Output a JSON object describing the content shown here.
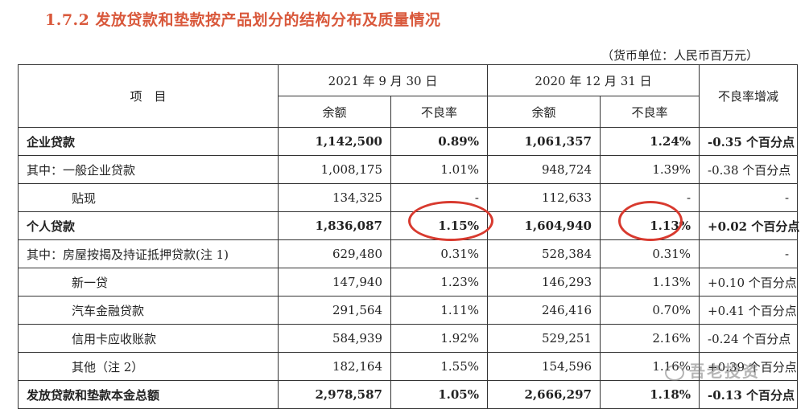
{
  "title": "1.7.2  发放贷款和垫款按产品划分的结构分布及质量情况",
  "unit": "（货币单位：人民币百万元）",
  "header": {
    "item": "项　目",
    "date1": "2021 年 9 月 30 日",
    "date2": "2020 年 12 月 31 日",
    "change": "不良率增减",
    "balance": "余额",
    "npl": "不良率"
  },
  "rows": [
    {
      "label": "企业贷款",
      "b1": "1,142,500",
      "r1": "0.89%",
      "b2": "1,061,357",
      "r2": "1.24%",
      "chg": "-0.35 个百分点"
    },
    {
      "label": "其中：一般企业贷款",
      "b1": "1,008,175",
      "r1": "1.01%",
      "b2": "948,724",
      "r2": "1.39%",
      "chg": "-0.38 个百分点"
    },
    {
      "label": "贴现",
      "b1": "134,325",
      "r1": "-",
      "b2": "112,633",
      "r2": "-",
      "chg": "-"
    },
    {
      "label": "个人贷款",
      "b1": "1,836,087",
      "r1": "1.15%",
      "b2": "1,604,940",
      "r2": "1.13%",
      "chg": "+0.02 个百分点"
    },
    {
      "label": "其中：房屋按揭及持证抵押贷款(注 1)",
      "b1": "629,480",
      "r1": "0.31%",
      "b2": "528,384",
      "r2": "0.31%",
      "chg": "-"
    },
    {
      "label": "新一贷",
      "b1": "147,940",
      "r1": "1.23%",
      "b2": "146,293",
      "r2": "1.13%",
      "chg": "+0.10 个百分点"
    },
    {
      "label": "汽车金融贷款",
      "b1": "291,564",
      "r1": "1.11%",
      "b2": "246,416",
      "r2": "0.70%",
      "chg": "+0.41 个百分点"
    },
    {
      "label": "信用卡应收账款",
      "b1": "584,939",
      "r1": "1.92%",
      "b2": "529,251",
      "r2": "2.16%",
      "chg": "-0.24 个百分点"
    },
    {
      "label": "其他（注 2）",
      "b1": "182,164",
      "r1": "1.55%",
      "b2": "154,596",
      "r2": "1.16%",
      "chg": "+0.39 个百分点"
    },
    {
      "label": "发放贷款和垫款本金总额",
      "b1": "2,978,587",
      "r1": "1.05%",
      "b2": "2,666,297",
      "r2": "1.18%",
      "chg": "-0.13 个百分点"
    }
  ],
  "watermark": "吾老投资",
  "colors": {
    "title": "#d9583b",
    "circle": "#d83a2f"
  }
}
